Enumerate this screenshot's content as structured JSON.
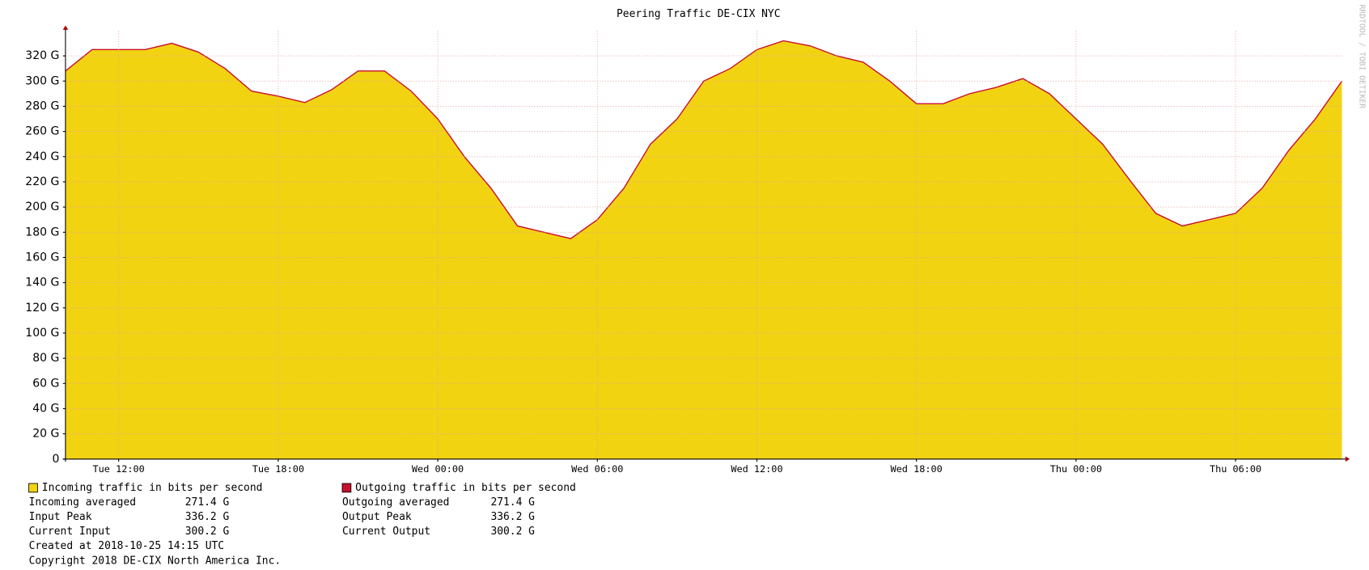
{
  "chart_data": {
    "type": "area",
    "title": "Peering Traffic DE-CIX NYC",
    "watermark": "RRDTOOL / TOBI OETIKER",
    "categories": [
      null,
      null,
      "Tue 12:00",
      null,
      null,
      null,
      null,
      null,
      "Tue 18:00",
      null,
      null,
      null,
      null,
      null,
      "Wed 00:00",
      null,
      null,
      null,
      null,
      null,
      "Wed 06:00",
      null,
      null,
      null,
      null,
      null,
      "Wed 12:00",
      null,
      null,
      null,
      null,
      null,
      "Wed 18:00",
      null,
      null,
      null,
      null,
      null,
      "Thu 00:00",
      null,
      null,
      null,
      null,
      null,
      "Thu 06:00",
      null,
      null,
      null,
      null
    ],
    "series": [
      {
        "name": "Incoming traffic in bits per second",
        "color": "#f2d312",
        "style": "area",
        "values": [
          308,
          325,
          325,
          325,
          330,
          323,
          310,
          292,
          288,
          283,
          293,
          308,
          308,
          292,
          270,
          240,
          215,
          185,
          180,
          175,
          190,
          215,
          250,
          270,
          300,
          310,
          325,
          332,
          328,
          320,
          315,
          300,
          282,
          282,
          290,
          295,
          302,
          290,
          270,
          250,
          222,
          195,
          185,
          190,
          195,
          215,
          245,
          270,
          300
        ]
      },
      {
        "name": "Outgoing traffic in bits per second",
        "color": "#c8102e",
        "style": "line",
        "values": [
          308,
          325,
          325,
          325,
          330,
          323,
          310,
          292,
          288,
          283,
          293,
          308,
          308,
          292,
          270,
          240,
          215,
          185,
          180,
          175,
          190,
          215,
          250,
          270,
          300,
          310,
          325,
          332,
          328,
          320,
          315,
          300,
          282,
          282,
          290,
          295,
          302,
          290,
          270,
          250,
          222,
          195,
          185,
          190,
          195,
          215,
          245,
          270,
          300
        ]
      }
    ],
    "ylim": [
      0,
      340
    ],
    "yticks": [
      0,
      {
        "value": 20,
        "label": "20 G"
      },
      {
        "value": 40,
        "label": "40 G"
      },
      {
        "value": 60,
        "label": "60 G"
      },
      {
        "value": 80,
        "label": "80 G"
      },
      {
        "value": 100,
        "label": "100 G"
      },
      {
        "value": 120,
        "label": "120 G"
      },
      {
        "value": 140,
        "label": "140 G"
      },
      {
        "value": 160,
        "label": "160 G"
      },
      {
        "value": 180,
        "label": "180 G"
      },
      {
        "value": 200,
        "label": "200 G"
      },
      {
        "value": 220,
        "label": "220 G"
      },
      {
        "value": 240,
        "label": "240 G"
      },
      {
        "value": 260,
        "label": "260 G"
      },
      {
        "value": 280,
        "label": "280 G"
      },
      {
        "value": 300,
        "label": "300 G"
      },
      {
        "value": 320,
        "label": "320 G"
      }
    ],
    "grid": true,
    "stats": [
      [
        [
          "Incoming averaged",
          "271.4 G"
        ],
        [
          "Input Peak",
          "336.2 G"
        ],
        [
          "Current Input",
          "300.2 G"
        ]
      ],
      [
        [
          "Outgoing averaged",
          "271.4 G"
        ],
        [
          "Output Peak",
          "336.2 G"
        ],
        [
          "Current Output",
          "300.2 G"
        ]
      ]
    ],
    "footer": [
      "Created at 2018-10-25 14:15 UTC",
      "Copyright 2018 DE-CIX North America Inc."
    ]
  }
}
